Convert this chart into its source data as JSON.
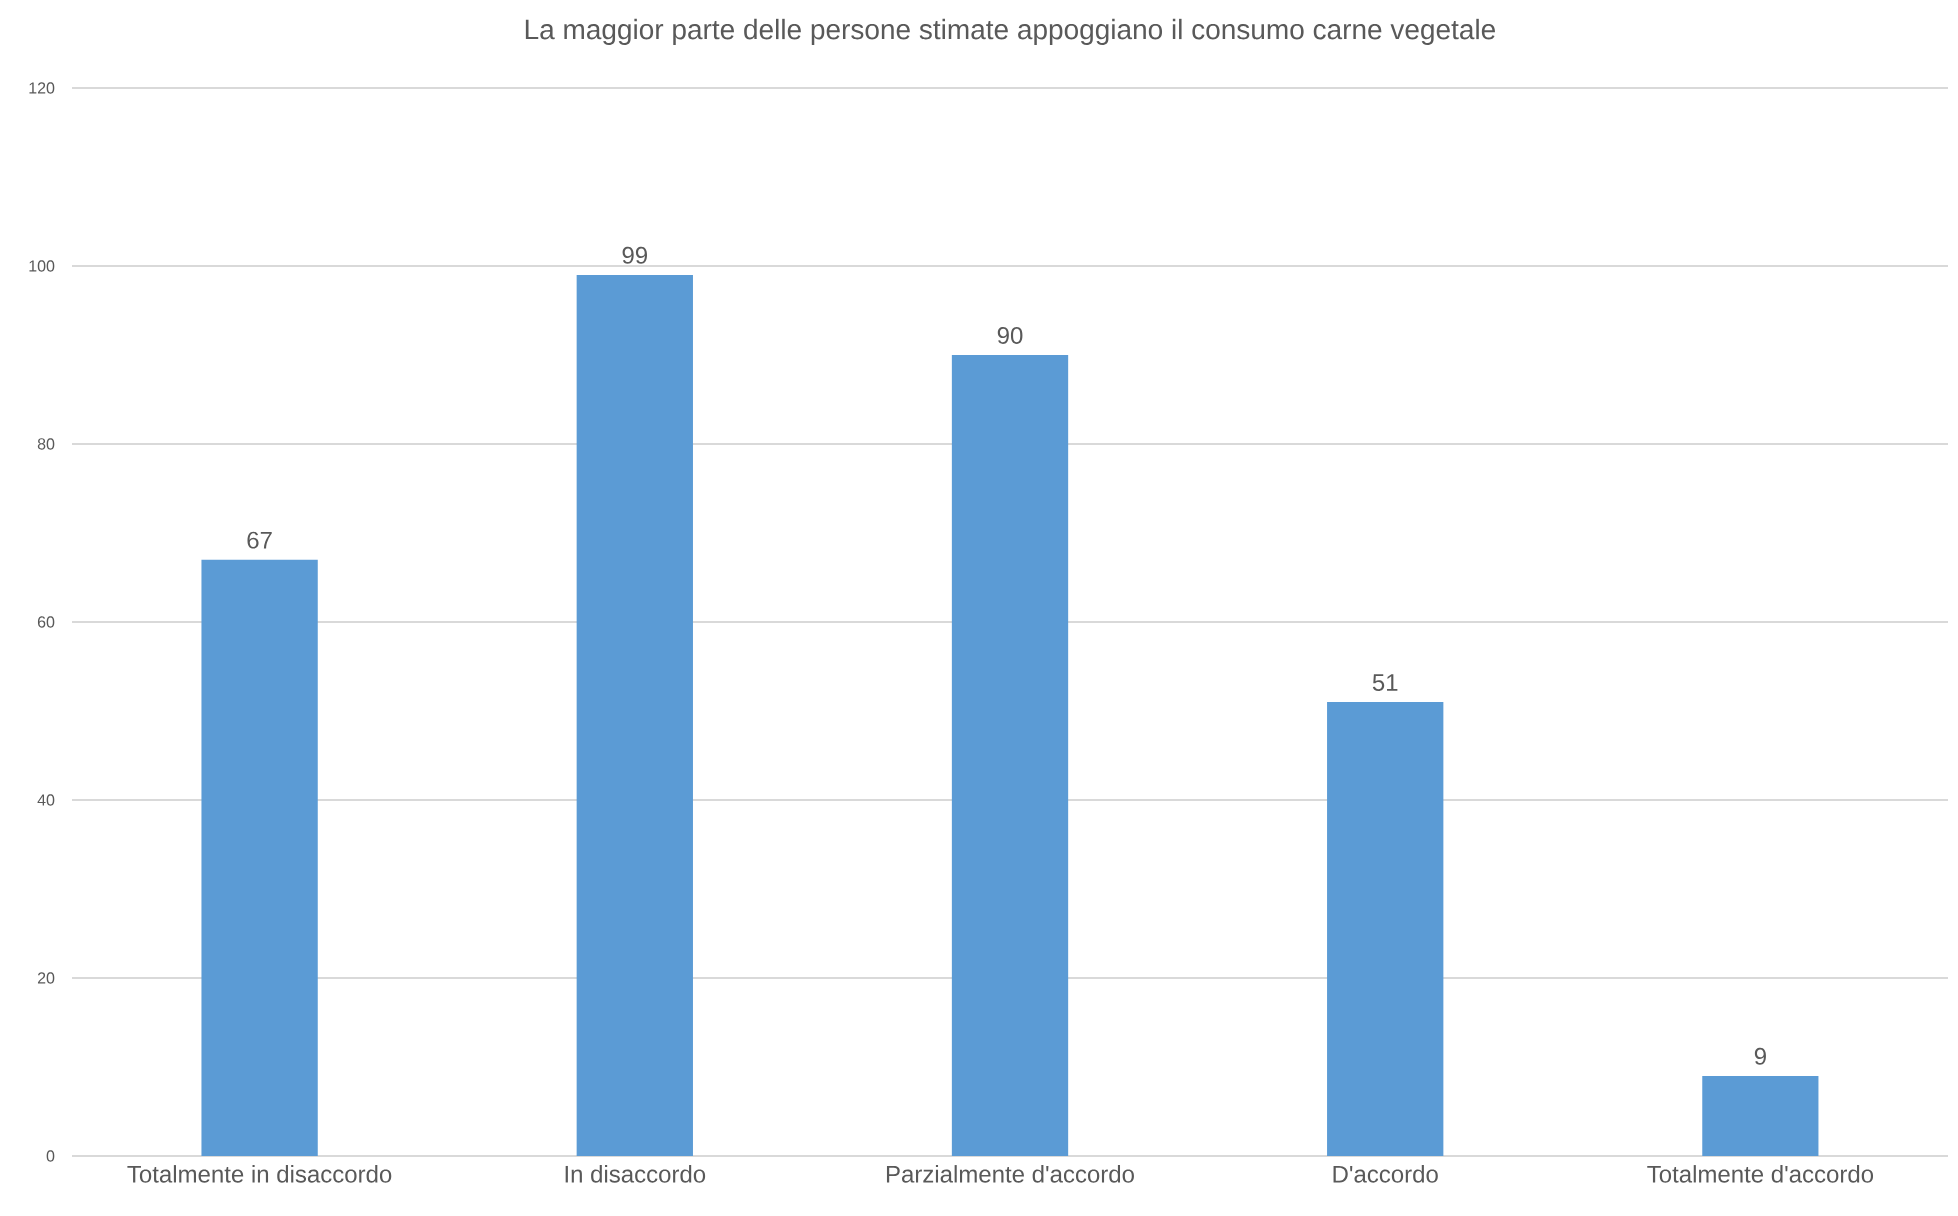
{
  "chart_data": {
    "type": "bar",
    "title": "La maggior parte delle persone stimate appoggiano il consumo carne vegetale",
    "categories": [
      "Totalmente in disaccordo",
      "In disaccordo",
      "Parzialmente d'accordo",
      "D'accordo",
      "Totalmente d'accordo"
    ],
    "values": [
      67,
      99,
      90,
      51,
      9
    ],
    "color": "#5b9bd5",
    "ylim": [
      0,
      120
    ],
    "yticks": [
      0,
      20,
      40,
      60,
      80,
      100,
      120
    ],
    "grid": "y",
    "data_labels": true
  }
}
